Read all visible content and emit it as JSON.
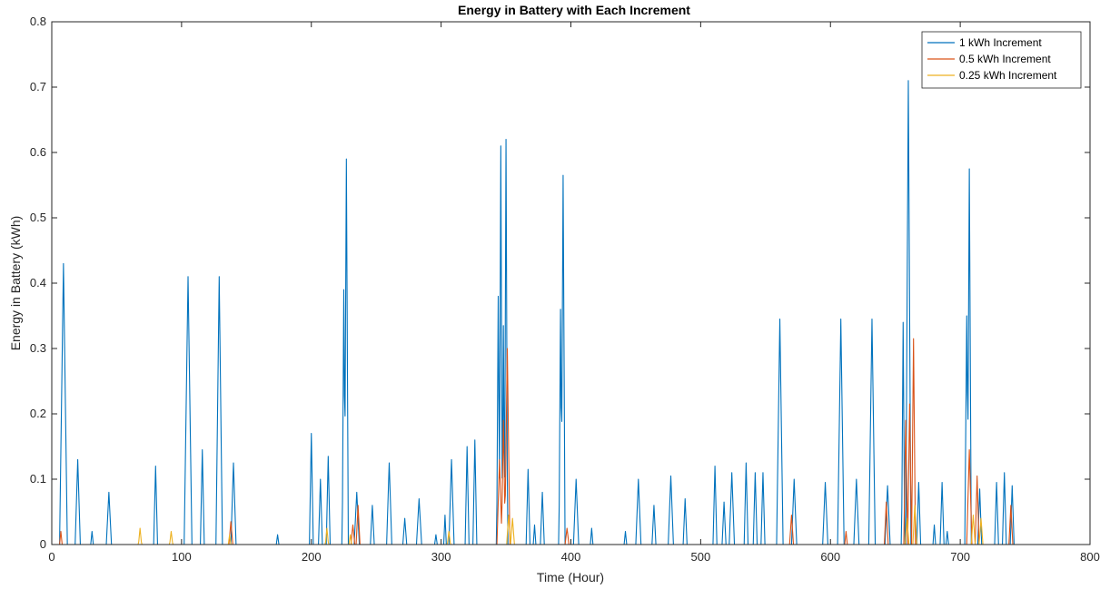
{
  "chart_data": {
    "type": "line",
    "title": "Energy in Battery with Each Increment",
    "xlabel": "Time (Hour)",
    "ylabel": "Energy in Battery (kWh)",
    "xlim": [
      0,
      800
    ],
    "ylim": [
      0,
      0.8
    ],
    "xticks": [
      0,
      100,
      200,
      300,
      400,
      500,
      600,
      700,
      800
    ],
    "yticks": [
      0,
      0.1,
      0.2,
      0.3,
      0.4,
      0.5,
      0.6,
      0.7,
      0.8
    ],
    "grid": false,
    "legend_position": "top-right",
    "series": [
      {
        "name": "1 kWh Increment",
        "color": "#0072BD",
        "peaks": [
          [
            9,
            0.43,
            3
          ],
          [
            20,
            0.13,
            2
          ],
          [
            31,
            0.02,
            1
          ],
          [
            44,
            0.08,
            2
          ],
          [
            80,
            0.12,
            1.5
          ],
          [
            105,
            0.41,
            3
          ],
          [
            116,
            0.145,
            1.5
          ],
          [
            129,
            0.41,
            2.5
          ],
          [
            140,
            0.125,
            2
          ],
          [
            174,
            0.015,
            1
          ],
          [
            200,
            0.17,
            1.5
          ],
          [
            207,
            0.1,
            1.5
          ],
          [
            213,
            0.135,
            1.5
          ],
          [
            225,
            0.39,
            1.2
          ],
          [
            227,
            0.59,
            1.5
          ],
          [
            235,
            0.08,
            2
          ],
          [
            247,
            0.06,
            1.5
          ],
          [
            260,
            0.125,
            2
          ],
          [
            272,
            0.04,
            1.5
          ],
          [
            283,
            0.07,
            2
          ],
          [
            296,
            0.015,
            1
          ],
          [
            303,
            0.045,
            1
          ],
          [
            308,
            0.13,
            2
          ],
          [
            320,
            0.15,
            1.5
          ],
          [
            326,
            0.16,
            1.5
          ],
          [
            344,
            0.38,
            1.2
          ],
          [
            346,
            0.61,
            1.2
          ],
          [
            348,
            0.335,
            1
          ],
          [
            350,
            0.62,
            1.2
          ],
          [
            367,
            0.115,
            1.5
          ],
          [
            372,
            0.03,
            1
          ],
          [
            378,
            0.08,
            1.5
          ],
          [
            392,
            0.36,
            1.2
          ],
          [
            394,
            0.565,
            1.5
          ],
          [
            404,
            0.1,
            2
          ],
          [
            416,
            0.025,
            1
          ],
          [
            442,
            0.02,
            1
          ],
          [
            452,
            0.1,
            2
          ],
          [
            464,
            0.06,
            1.5
          ],
          [
            477,
            0.105,
            2
          ],
          [
            488,
            0.07,
            1.5
          ],
          [
            511,
            0.12,
            1.5
          ],
          [
            518,
            0.065,
            1.5
          ],
          [
            524,
            0.11,
            2
          ],
          [
            535,
            0.125,
            1.5
          ],
          [
            542,
            0.11,
            1.5
          ],
          [
            548,
            0.11,
            1.5
          ],
          [
            561,
            0.345,
            2.5
          ],
          [
            572,
            0.1,
            2
          ],
          [
            596,
            0.095,
            2
          ],
          [
            608,
            0.345,
            2.5
          ],
          [
            620,
            0.1,
            2
          ],
          [
            632,
            0.345,
            2.5
          ],
          [
            644,
            0.09,
            2
          ],
          [
            656,
            0.34,
            1.2
          ],
          [
            660,
            0.71,
            2
          ],
          [
            668,
            0.095,
            1.5
          ],
          [
            680,
            0.03,
            1
          ],
          [
            686,
            0.095,
            1.5
          ],
          [
            690,
            0.02,
            1
          ],
          [
            705,
            0.35,
            1.5
          ],
          [
            707,
            0.575,
            1.5
          ],
          [
            715,
            0.085,
            1.5
          ],
          [
            728,
            0.095,
            1.5
          ],
          [
            734,
            0.11,
            1.5
          ],
          [
            740,
            0.09,
            1.5
          ]
        ]
      },
      {
        "name": "0.5 kWh Increment",
        "color": "#D95319",
        "peaks": [
          [
            7,
            0.02,
            1
          ],
          [
            138,
            0.035,
            1.5
          ],
          [
            232,
            0.03,
            1.5
          ],
          [
            236,
            0.06,
            1.5
          ],
          [
            345,
            0.13,
            2
          ],
          [
            348,
            0.19,
            1.5
          ],
          [
            351,
            0.3,
            2
          ],
          [
            397,
            0.025,
            1.5
          ],
          [
            570,
            0.045,
            1.5
          ],
          [
            612,
            0.02,
            1
          ],
          [
            643,
            0.065,
            1.5
          ],
          [
            658,
            0.19,
            1.5
          ],
          [
            661,
            0.215,
            1.5
          ],
          [
            664,
            0.315,
            1.5
          ],
          [
            707,
            0.145,
            2
          ],
          [
            713,
            0.105,
            1.5
          ],
          [
            739,
            0.06,
            1.5
          ]
        ]
      },
      {
        "name": "0.25 kWh Increment",
        "color": "#EDB120",
        "peaks": [
          [
            68,
            0.025,
            1.2
          ],
          [
            92,
            0.02,
            1.2
          ],
          [
            137,
            0.015,
            1
          ],
          [
            212,
            0.025,
            1.2
          ],
          [
            230,
            0.015,
            1
          ],
          [
            306,
            0.02,
            1.2
          ],
          [
            352,
            0.045,
            1.5
          ],
          [
            355,
            0.04,
            1.5
          ],
          [
            659,
            0.04,
            1.5
          ],
          [
            665,
            0.06,
            1.5
          ],
          [
            710,
            0.045,
            1.5
          ],
          [
            716,
            0.04,
            1.5
          ]
        ]
      }
    ]
  }
}
